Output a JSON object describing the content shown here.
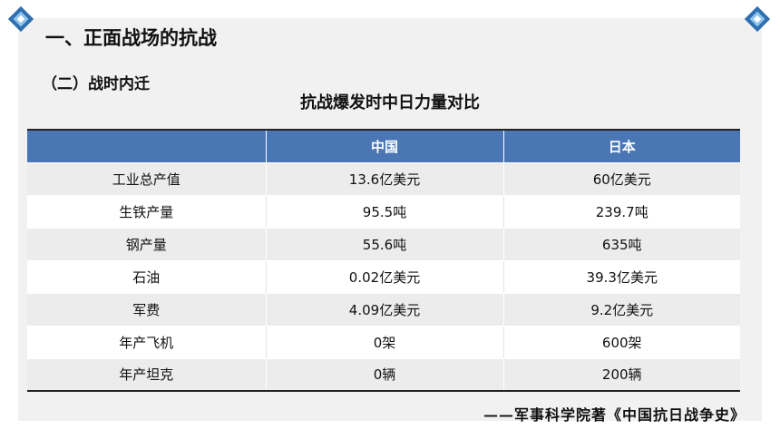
{
  "slide": {
    "heading": "一、正面战场的抗战",
    "subheading": "（二）战时内迁",
    "table_title": "抗战爆发时中日力量对比",
    "source": "——军事科学院著《中国抗日战争史》",
    "accent_color": "#4a76b4"
  },
  "table": {
    "headers": [
      "",
      "中国",
      "日本"
    ],
    "rows": [
      [
        "工业总产值",
        "13.6亿美元",
        "60亿美元"
      ],
      [
        "生铁产量",
        "95.5吨",
        "239.7吨"
      ],
      [
        "钢产量",
        "55.6吨",
        "635吨"
      ],
      [
        "石油",
        "0.02亿美元",
        "39.3亿美元"
      ],
      [
        "军费",
        "4.09亿美元",
        "9.2亿美元"
      ],
      [
        "年产飞机",
        "0架",
        "600架"
      ],
      [
        "年产坦克",
        "0辆",
        "200辆"
      ]
    ]
  },
  "icons": {
    "left_corner": "diamond-ornament-icon",
    "right_corner": "diamond-ornament-icon"
  }
}
